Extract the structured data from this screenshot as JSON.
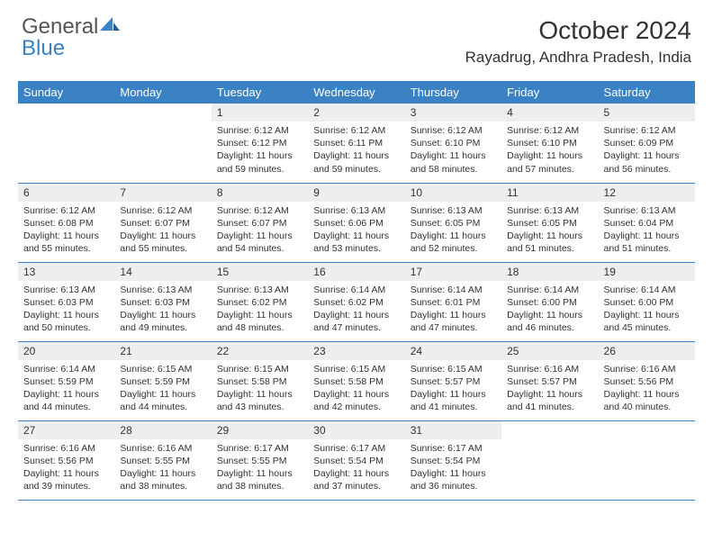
{
  "logo": {
    "word1": "General",
    "word2": "Blue"
  },
  "title": "October 2024",
  "location": "Rayadrug, Andhra Pradesh, India",
  "colors": {
    "accent": "#3b82c4",
    "header_bg": "#3b82c4",
    "header_fg": "#ffffff",
    "daynum_bg": "#eceeef",
    "border": "#3b82c4",
    "text": "#333333",
    "logo_gray": "#555555"
  },
  "weekdays": [
    "Sunday",
    "Monday",
    "Tuesday",
    "Wednesday",
    "Thursday",
    "Friday",
    "Saturday"
  ],
  "weeks": [
    [
      {
        "n": "",
        "sr": "",
        "ss": "",
        "dl": ""
      },
      {
        "n": "",
        "sr": "",
        "ss": "",
        "dl": ""
      },
      {
        "n": "1",
        "sr": "Sunrise: 6:12 AM",
        "ss": "Sunset: 6:12 PM",
        "dl": "Daylight: 11 hours and 59 minutes."
      },
      {
        "n": "2",
        "sr": "Sunrise: 6:12 AM",
        "ss": "Sunset: 6:11 PM",
        "dl": "Daylight: 11 hours and 59 minutes."
      },
      {
        "n": "3",
        "sr": "Sunrise: 6:12 AM",
        "ss": "Sunset: 6:10 PM",
        "dl": "Daylight: 11 hours and 58 minutes."
      },
      {
        "n": "4",
        "sr": "Sunrise: 6:12 AM",
        "ss": "Sunset: 6:10 PM",
        "dl": "Daylight: 11 hours and 57 minutes."
      },
      {
        "n": "5",
        "sr": "Sunrise: 6:12 AM",
        "ss": "Sunset: 6:09 PM",
        "dl": "Daylight: 11 hours and 56 minutes."
      }
    ],
    [
      {
        "n": "6",
        "sr": "Sunrise: 6:12 AM",
        "ss": "Sunset: 6:08 PM",
        "dl": "Daylight: 11 hours and 55 minutes."
      },
      {
        "n": "7",
        "sr": "Sunrise: 6:12 AM",
        "ss": "Sunset: 6:07 PM",
        "dl": "Daylight: 11 hours and 55 minutes."
      },
      {
        "n": "8",
        "sr": "Sunrise: 6:12 AM",
        "ss": "Sunset: 6:07 PM",
        "dl": "Daylight: 11 hours and 54 minutes."
      },
      {
        "n": "9",
        "sr": "Sunrise: 6:13 AM",
        "ss": "Sunset: 6:06 PM",
        "dl": "Daylight: 11 hours and 53 minutes."
      },
      {
        "n": "10",
        "sr": "Sunrise: 6:13 AM",
        "ss": "Sunset: 6:05 PM",
        "dl": "Daylight: 11 hours and 52 minutes."
      },
      {
        "n": "11",
        "sr": "Sunrise: 6:13 AM",
        "ss": "Sunset: 6:05 PM",
        "dl": "Daylight: 11 hours and 51 minutes."
      },
      {
        "n": "12",
        "sr": "Sunrise: 6:13 AM",
        "ss": "Sunset: 6:04 PM",
        "dl": "Daylight: 11 hours and 51 minutes."
      }
    ],
    [
      {
        "n": "13",
        "sr": "Sunrise: 6:13 AM",
        "ss": "Sunset: 6:03 PM",
        "dl": "Daylight: 11 hours and 50 minutes."
      },
      {
        "n": "14",
        "sr": "Sunrise: 6:13 AM",
        "ss": "Sunset: 6:03 PM",
        "dl": "Daylight: 11 hours and 49 minutes."
      },
      {
        "n": "15",
        "sr": "Sunrise: 6:13 AM",
        "ss": "Sunset: 6:02 PM",
        "dl": "Daylight: 11 hours and 48 minutes."
      },
      {
        "n": "16",
        "sr": "Sunrise: 6:14 AM",
        "ss": "Sunset: 6:02 PM",
        "dl": "Daylight: 11 hours and 47 minutes."
      },
      {
        "n": "17",
        "sr": "Sunrise: 6:14 AM",
        "ss": "Sunset: 6:01 PM",
        "dl": "Daylight: 11 hours and 47 minutes."
      },
      {
        "n": "18",
        "sr": "Sunrise: 6:14 AM",
        "ss": "Sunset: 6:00 PM",
        "dl": "Daylight: 11 hours and 46 minutes."
      },
      {
        "n": "19",
        "sr": "Sunrise: 6:14 AM",
        "ss": "Sunset: 6:00 PM",
        "dl": "Daylight: 11 hours and 45 minutes."
      }
    ],
    [
      {
        "n": "20",
        "sr": "Sunrise: 6:14 AM",
        "ss": "Sunset: 5:59 PM",
        "dl": "Daylight: 11 hours and 44 minutes."
      },
      {
        "n": "21",
        "sr": "Sunrise: 6:15 AM",
        "ss": "Sunset: 5:59 PM",
        "dl": "Daylight: 11 hours and 44 minutes."
      },
      {
        "n": "22",
        "sr": "Sunrise: 6:15 AM",
        "ss": "Sunset: 5:58 PM",
        "dl": "Daylight: 11 hours and 43 minutes."
      },
      {
        "n": "23",
        "sr": "Sunrise: 6:15 AM",
        "ss": "Sunset: 5:58 PM",
        "dl": "Daylight: 11 hours and 42 minutes."
      },
      {
        "n": "24",
        "sr": "Sunrise: 6:15 AM",
        "ss": "Sunset: 5:57 PM",
        "dl": "Daylight: 11 hours and 41 minutes."
      },
      {
        "n": "25",
        "sr": "Sunrise: 6:16 AM",
        "ss": "Sunset: 5:57 PM",
        "dl": "Daylight: 11 hours and 41 minutes."
      },
      {
        "n": "26",
        "sr": "Sunrise: 6:16 AM",
        "ss": "Sunset: 5:56 PM",
        "dl": "Daylight: 11 hours and 40 minutes."
      }
    ],
    [
      {
        "n": "27",
        "sr": "Sunrise: 6:16 AM",
        "ss": "Sunset: 5:56 PM",
        "dl": "Daylight: 11 hours and 39 minutes."
      },
      {
        "n": "28",
        "sr": "Sunrise: 6:16 AM",
        "ss": "Sunset: 5:55 PM",
        "dl": "Daylight: 11 hours and 38 minutes."
      },
      {
        "n": "29",
        "sr": "Sunrise: 6:17 AM",
        "ss": "Sunset: 5:55 PM",
        "dl": "Daylight: 11 hours and 38 minutes."
      },
      {
        "n": "30",
        "sr": "Sunrise: 6:17 AM",
        "ss": "Sunset: 5:54 PM",
        "dl": "Daylight: 11 hours and 37 minutes."
      },
      {
        "n": "31",
        "sr": "Sunrise: 6:17 AM",
        "ss": "Sunset: 5:54 PM",
        "dl": "Daylight: 11 hours and 36 minutes."
      },
      {
        "n": "",
        "sr": "",
        "ss": "",
        "dl": ""
      },
      {
        "n": "",
        "sr": "",
        "ss": "",
        "dl": ""
      }
    ]
  ]
}
